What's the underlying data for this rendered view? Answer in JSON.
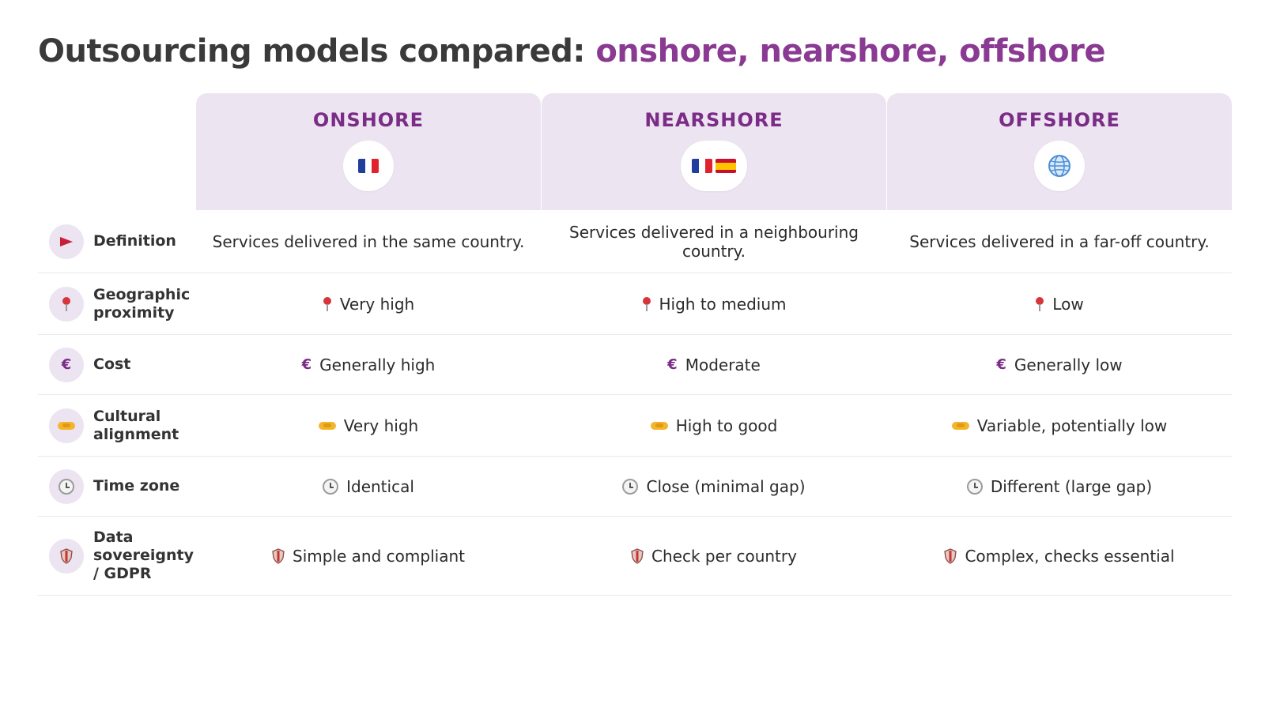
{
  "title": {
    "lead": "Outsourcing models compared: ",
    "accent": "onshore, nearshore, offshore"
  },
  "colors": {
    "accent": "#8a3a92",
    "header_bg": "#ece4f1",
    "header_text": "#7a2c86"
  },
  "columns": [
    {
      "label": "ONSHORE",
      "badge_icons": [
        "france-flag-icon"
      ]
    },
    {
      "label": "NEARSHORE",
      "badge_icons": [
        "france-flag-icon",
        "spain-flag-icon"
      ]
    },
    {
      "label": "OFFSHORE",
      "badge_icons": [
        "globe-icon"
      ]
    }
  ],
  "rows": [
    {
      "label": "Definition",
      "icon": "red-flag-icon",
      "cell_icon": "",
      "values": [
        "Services delivered in the same country.",
        "Services delivered in a neighbouring country.",
        "Services delivered in a far-off country."
      ]
    },
    {
      "label": "Geographic proximity",
      "icon": "pin-icon",
      "cell_icon": "pin-icon",
      "values": [
        "Very high",
        "High to medium",
        "Low"
      ]
    },
    {
      "label": "Cost",
      "icon": "euro-icon",
      "icon_glyph": "€",
      "cell_icon": "euro-icon",
      "values": [
        "Generally high",
        "Moderate",
        "Generally low"
      ]
    },
    {
      "label": "Cultural alignment",
      "icon": "handshake-icon",
      "cell_icon": "handshake-icon",
      "values": [
        "Very high",
        "High to good",
        "Variable, potentially low"
      ]
    },
    {
      "label": "Time zone",
      "icon": "clock-icon",
      "cell_icon": "clock-icon",
      "values": [
        "Identical",
        "Close (minimal gap)",
        "Different (large gap)"
      ]
    },
    {
      "label": "Data sovereignty / GDPR",
      "icon": "shield-icon",
      "cell_icon": "shield-icon",
      "values": [
        "Simple and compliant",
        "Check per country",
        "Complex, checks essential"
      ]
    }
  ]
}
